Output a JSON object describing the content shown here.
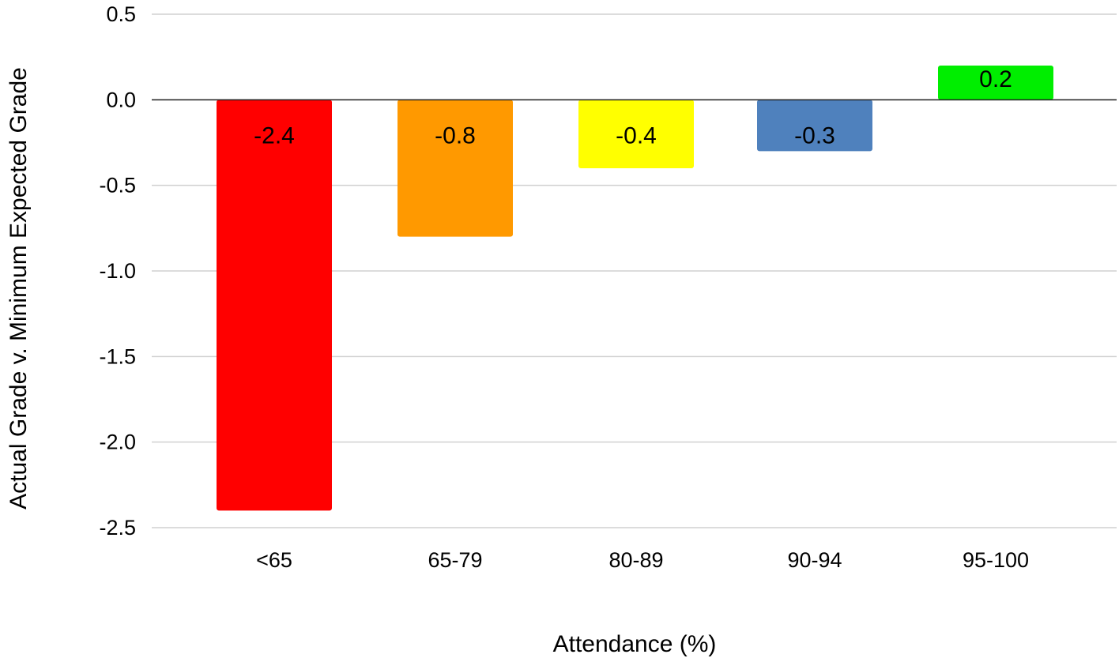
{
  "chart_data": {
    "type": "bar",
    "title": "",
    "xlabel": "Attendance (%)",
    "ylabel": "Actual Grade v. Minimum Expected Grade",
    "categories": [
      "<65",
      "65-79",
      "80-89",
      "90-94",
      "95-100"
    ],
    "values": [
      -2.4,
      -0.8,
      -0.4,
      -0.3,
      0.2
    ],
    "data_labels": [
      "-2.4",
      "-0.8",
      "-0.4",
      "-0.3",
      "0.2"
    ],
    "bar_colors": [
      "#ff0000",
      "#ff9900",
      "#ffff00",
      "#4f81bd",
      "#00ee00"
    ],
    "ylim": [
      -2.5,
      0.5
    ],
    "yticks": [
      0.5,
      0.0,
      -0.5,
      -1.0,
      -1.5,
      -2.0,
      -2.5
    ],
    "ytick_labels": [
      "0.5",
      "0.0",
      "-0.5",
      "-1.0",
      "-1.5",
      "-2.0",
      "-2.5"
    ],
    "grid": true,
    "legend": "none"
  }
}
